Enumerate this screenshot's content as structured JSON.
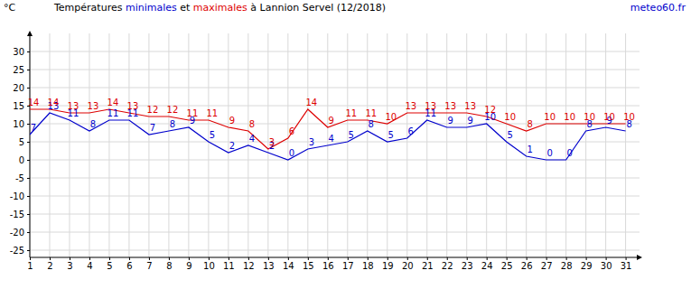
{
  "chart_data": {
    "type": "line",
    "title": "Températures minimales et maximales à Lannion Servel (12/2018)",
    "source": "meteo60.fr",
    "y_label": "°C",
    "x": [
      1,
      2,
      3,
      4,
      5,
      6,
      7,
      8,
      9,
      10,
      11,
      12,
      13,
      14,
      15,
      16,
      17,
      18,
      19,
      20,
      21,
      22,
      23,
      24,
      25,
      26,
      27,
      28,
      29,
      30,
      31
    ],
    "series": [
      {
        "name": "minimales",
        "color": "#0000cc",
        "values": [
          7,
          13,
          11,
          8,
          11,
          11,
          7,
          8,
          9,
          5,
          2,
          4,
          2,
          0,
          3,
          4,
          5,
          8,
          5,
          6,
          11,
          9,
          9,
          10,
          5,
          1,
          0,
          0,
          8,
          9,
          8
        ]
      },
      {
        "name": "maximales",
        "color": "#dd0000",
        "values": [
          14,
          14,
          13,
          13,
          14,
          13,
          12,
          12,
          11,
          11,
          9,
          8,
          3,
          6,
          14,
          9,
          11,
          11,
          10,
          13,
          13,
          13,
          13,
          12,
          10,
          8,
          10,
          10,
          10,
          10,
          10
        ]
      }
    ],
    "xlim": [
      1,
      31.7
    ],
    "xticks": [
      1,
      2,
      3,
      4,
      5,
      6,
      7,
      8,
      9,
      10,
      11,
      12,
      13,
      14,
      15,
      16,
      17,
      18,
      19,
      20,
      21,
      22,
      23,
      24,
      25,
      26,
      27,
      28,
      29,
      30,
      31
    ],
    "ylim": [
      -27,
      35
    ],
    "yticks": [
      -25,
      -20,
      -15,
      -10,
      -5,
      0,
      5,
      10,
      15,
      20,
      25,
      30
    ],
    "grid": true,
    "data_labels": true
  }
}
